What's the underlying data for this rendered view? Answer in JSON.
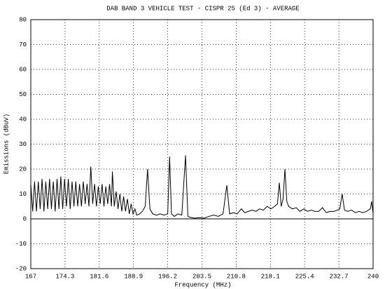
{
  "chart_data": {
    "type": "line",
    "title": "DAB BAND 3 VEHICLE TEST - CISPR 25 (Ed 3) - AVERAGE",
    "xlabel": "Frequency (MHz)",
    "ylabel": "Emissions (dBuV)",
    "color": "#000000",
    "grid": true,
    "xlim": [
      167,
      240
    ],
    "xticks": [
      167,
      174.3,
      181.6,
      188.9,
      196.2,
      203.5,
      210.8,
      218.1,
      225.4,
      232.7,
      240
    ],
    "ylim": [
      -20,
      80
    ],
    "yticks": [
      -20,
      -10,
      0,
      10,
      20,
      30,
      40,
      50,
      60,
      70,
      80
    ],
    "x": [
      167,
      167.4,
      167.8,
      168.2,
      168.6,
      169,
      169.4,
      169.8,
      170.2,
      170.6,
      171,
      171.4,
      171.8,
      172.2,
      172.6,
      173,
      173.4,
      173.8,
      174.2,
      174.6,
      175,
      175.4,
      175.8,
      176.2,
      176.6,
      177,
      177.4,
      177.8,
      178.2,
      178.6,
      179,
      179.4,
      179.8,
      180.2,
      180.6,
      181,
      181.4,
      181.8,
      182.2,
      182.6,
      183,
      183.4,
      183.8,
      184.2,
      184.4,
      184.8,
      185.2,
      185.6,
      186,
      186.4,
      186.8,
      187.2,
      187.6,
      188,
      188.4,
      188.8,
      189.2,
      189.6,
      190.2,
      190.8,
      191.4,
      191.9,
      192.4,
      193,
      193.8,
      194.6,
      195.4,
      196.2,
      196.6,
      197,
      197.6,
      198.4,
      199.2,
      200,
      200.5,
      201.2,
      202,
      203,
      204,
      205,
      206,
      207,
      208,
      208.8,
      209.4,
      210.2,
      211,
      211.9,
      212.6,
      213.4,
      214.2,
      215,
      215.8,
      216.6,
      217.4,
      218.2,
      219,
      219.6,
      220,
      220.4,
      220.8,
      221.2,
      221.6,
      222,
      222.8,
      223.6,
      224.4,
      225.2,
      226,
      226.8,
      227.6,
      228.4,
      229.2,
      230,
      230.8,
      231.6,
      232.4,
      232.9,
      233.4,
      233.9,
      234.6,
      235.4,
      236.2,
      237,
      237.8,
      238.6,
      239.4,
      239.7,
      240
    ],
    "values": [
      14,
      3,
      15,
      3,
      15,
      4,
      16,
      3,
      15,
      4,
      16,
      4,
      15,
      3,
      16,
      4,
      17,
      4,
      16,
      5,
      16,
      4,
      15,
      5,
      15,
      5,
      14,
      5,
      15,
      6,
      14,
      5,
      21,
      6,
      14,
      5,
      13,
      6,
      14,
      5,
      13,
      6,
      14,
      5,
      19,
      5,
      11,
      4,
      10,
      3,
      9,
      3,
      8,
      2,
      6,
      2,
      4,
      1.5,
      2,
      3,
      5,
      20,
      4,
      2,
      1.5,
      2,
      1.5,
      2,
      25,
      2,
      1,
      2,
      1.5,
      25.5,
      1,
      0.5,
      0.3,
      0.5,
      0.3,
      1,
      1.5,
      1,
      2,
      13.5,
      2,
      2.5,
      2,
      4,
      2.5,
      3,
      3.5,
      3,
      4,
      3.5,
      5,
      4,
      5,
      6,
      14.5,
      5,
      8,
      20,
      7,
      5,
      4,
      4.5,
      3,
      4,
      3,
      3.5,
      3,
      3,
      4.5,
      2.5,
      3,
      3,
      3.5,
      4,
      10,
      3.5,
      3,
      3.5,
      2.5,
      3,
      2.5,
      3,
      4,
      7,
      2
    ]
  }
}
